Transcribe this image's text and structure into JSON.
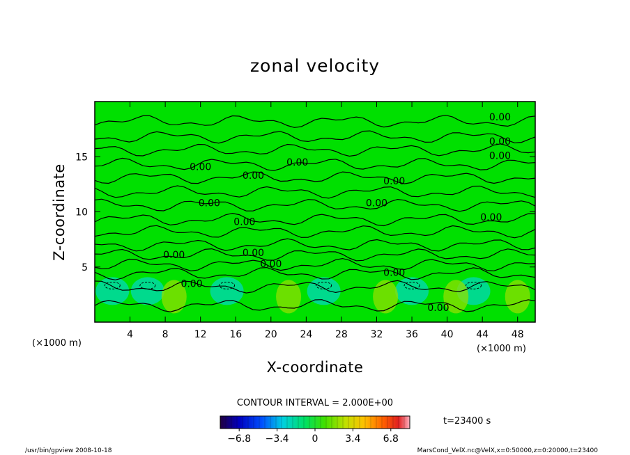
{
  "chart_data": {
    "type": "heatmap",
    "title": "zonal velocity",
    "xlabel": "X-coordinate",
    "ylabel": "Z-coordinate",
    "x_unit_left": "(×1000 m)",
    "x_unit_right": "(×1000 m)",
    "xlim": [
      0,
      50
    ],
    "ylim": [
      0,
      20
    ],
    "x_ticks": [
      "4",
      "8",
      "12",
      "16",
      "20",
      "24",
      "28",
      "32",
      "36",
      "40",
      "44",
      "48"
    ],
    "y_ticks": [
      "5",
      "10",
      "15"
    ],
    "contour_interval_text": "CONTOUR INTERVAL = 2.000E+00",
    "contour_label": "0.00",
    "time_text": "t=23400 s",
    "colorbar": {
      "range": [
        -8.5,
        8.5
      ],
      "tick_labels": [
        "−6.8",
        "−3.4",
        "0",
        "3.4",
        "6.8"
      ],
      "tick_values": [
        -6.8,
        -3.4,
        0,
        3.4,
        6.8
      ]
    },
    "field_color": "#00e000",
    "colors": {
      "near_zero": "#00e000",
      "negative": "#00d8b0",
      "positive": "#90e000"
    },
    "lower_layer": {
      "top_z": 4.2,
      "negative_cores_x": [
        2,
        6,
        15,
        26,
        36,
        43
      ],
      "positive_cores_x": [
        9,
        22,
        33,
        41,
        48
      ]
    },
    "contour_levels_z": [
      1.5,
      3.2,
      4.4,
      5.2,
      6.1,
      7.0,
      8.2,
      9.3,
      10.6,
      11.8,
      13.1,
      14.3,
      15.6,
      16.8,
      18.2
    ]
  },
  "footer": {
    "left": "/usr/bin/gpview   2008-10-18",
    "right": "MarsCond_VelX.nc@VelX,x=0:50000,z=0:20000,t=23400"
  }
}
